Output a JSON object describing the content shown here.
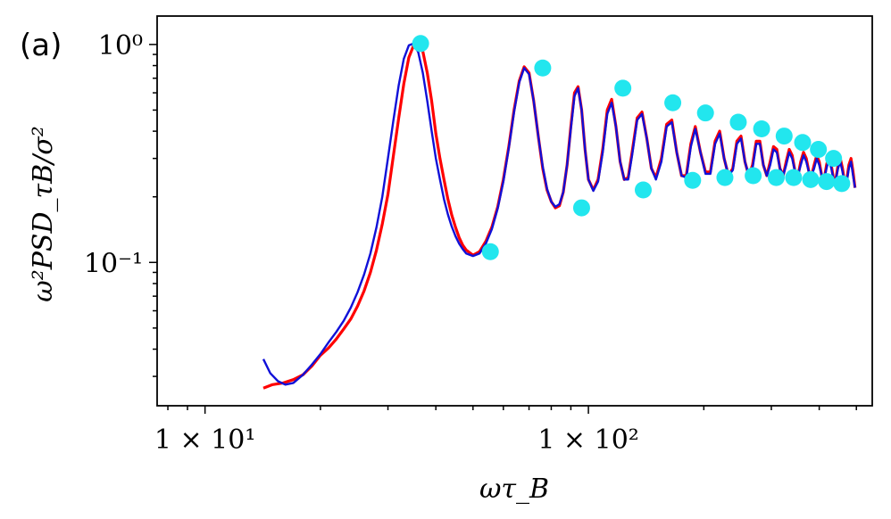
{
  "chart_data": {
    "type": "line",
    "panel_label": "(a)",
    "xlabel": "ωτ_B",
    "ylabel": "ω²PSD_τB/σ²",
    "x_scale": "log",
    "y_scale": "log",
    "xlim": [
      7.5,
      550
    ],
    "ylim": [
      0.022,
      1.35
    ],
    "x_ticks": [
      {
        "value": 10,
        "label": "1 × 10¹"
      },
      {
        "value": 100,
        "label": "1 × 10²"
      }
    ],
    "y_ticks": [
      {
        "value": 0.1,
        "label": "10⁻¹"
      },
      {
        "value": 1,
        "label": "10⁰"
      }
    ],
    "series": [
      {
        "color": "#ff0000",
        "style": "noisy data",
        "x": [
          14.2,
          15.0,
          16.0,
          17.0,
          18.0,
          19.0,
          20.0,
          21.0,
          22.0,
          23.0,
          24.0,
          25.0,
          26.0,
          27.0,
          28.0,
          29.0,
          30.0,
          31.0,
          32.0,
          33.0,
          34.0,
          35.0,
          36.0,
          37.0,
          38.0,
          39.0,
          40.0,
          41.0,
          42.0,
          43.0,
          44.0,
          45.0,
          46.0,
          47.0,
          48.0,
          50.0,
          52.0,
          54.0,
          56.0,
          58.0,
          60.0,
          62.0,
          64.0,
          66.0,
          68.0,
          70.0,
          72.0,
          74.0,
          76.0,
          78.0,
          80.0,
          82.0,
          84.0,
          86.0,
          88.0,
          90.0,
          92.0,
          94.0,
          96.0,
          98.0,
          100.0,
          103.0,
          106.0,
          109.0,
          112.0,
          115.0,
          118.0,
          121.0,
          124.0,
          127.0,
          130.0,
          134.0,
          138.0,
          142.0,
          146.0,
          150.0,
          155.0,
          160.0,
          165.0,
          170.0,
          175.0,
          180.0,
          185.0,
          190.0,
          196.0,
          202.0,
          208.0,
          214.0,
          220.0,
          226.0,
          232.0,
          238.0,
          244.0,
          250.0,
          256.0,
          262.0,
          268.0,
          274.0,
          280.0,
          286.0,
          292.0,
          298.0,
          304.0,
          310.0,
          316.0,
          322.0,
          328.0,
          334.0,
          340.0,
          346.0,
          352.0,
          358.0,
          364.0,
          370.0,
          376.0,
          382.0,
          388.0,
          394.0,
          400.0,
          406.0,
          412.0,
          418.0,
          424.0,
          430.0,
          436.0,
          442.0,
          448.0,
          454.0,
          460.0,
          466.0,
          472.0,
          478.0,
          484.0,
          490.0,
          496.0
        ],
        "y": [
          0.0265,
          0.0275,
          0.028,
          0.029,
          0.0305,
          0.0335,
          0.0375,
          0.0405,
          0.0445,
          0.0495,
          0.055,
          0.063,
          0.074,
          0.09,
          0.114,
          0.15,
          0.205,
          0.31,
          0.46,
          0.66,
          0.87,
          0.99,
          1.02,
          0.93,
          0.74,
          0.55,
          0.39,
          0.3,
          0.24,
          0.195,
          0.165,
          0.145,
          0.13,
          0.12,
          0.114,
          0.108,
          0.112,
          0.125,
          0.145,
          0.18,
          0.24,
          0.34,
          0.5,
          0.68,
          0.79,
          0.74,
          0.55,
          0.38,
          0.27,
          0.215,
          0.19,
          0.178,
          0.182,
          0.21,
          0.28,
          0.42,
          0.6,
          0.64,
          0.5,
          0.33,
          0.24,
          0.215,
          0.24,
          0.33,
          0.5,
          0.56,
          0.42,
          0.29,
          0.24,
          0.245,
          0.32,
          0.46,
          0.49,
          0.37,
          0.27,
          0.245,
          0.3,
          0.43,
          0.45,
          0.32,
          0.25,
          0.25,
          0.35,
          0.42,
          0.32,
          0.26,
          0.26,
          0.36,
          0.4,
          0.3,
          0.25,
          0.27,
          0.36,
          0.38,
          0.29,
          0.25,
          0.28,
          0.36,
          0.36,
          0.28,
          0.25,
          0.29,
          0.34,
          0.33,
          0.27,
          0.25,
          0.29,
          0.33,
          0.31,
          0.26,
          0.25,
          0.29,
          0.32,
          0.3,
          0.26,
          0.25,
          0.28,
          0.31,
          0.29,
          0.25,
          0.24,
          0.28,
          0.31,
          0.28,
          0.24,
          0.24,
          0.28,
          0.3,
          0.27,
          0.23,
          0.24,
          0.28,
          0.3,
          0.26,
          0.22
        ]
      },
      {
        "color": "#1010d8",
        "style": "smooth fit",
        "x": [
          14.2,
          14.8,
          15.5,
          16.2,
          17.0,
          18.0,
          19.0,
          20.0,
          21.0,
          22.0,
          23.0,
          24.0,
          25.0,
          26.0,
          27.0,
          28.0,
          29.0,
          30.0,
          31.0,
          32.0,
          33.0,
          34.0,
          35.0,
          36.0,
          37.0,
          38.0,
          39.0,
          40.0,
          41.0,
          42.0,
          43.0,
          44.0,
          45.0,
          46.0,
          47.0,
          48.0,
          50.0,
          52.0,
          54.0,
          56.0,
          58.0,
          60.0,
          62.0,
          64.0,
          66.0,
          68.0,
          70.0,
          72.0,
          74.0,
          76.0,
          78.0,
          80.0,
          82.0,
          84.0,
          86.0,
          88.0,
          90.0,
          92.0,
          94.0,
          96.0,
          98.0,
          100.0,
          103.0,
          106.0,
          109.0,
          112.0,
          115.0,
          118.0,
          121.0,
          124.0,
          127.0,
          130.0,
          134.0,
          138.0,
          142.0,
          146.0,
          150.0,
          155.0,
          160.0,
          165.0,
          170.0,
          175.0,
          180.0,
          185.0,
          190.0,
          196.0,
          202.0,
          208.0,
          214.0,
          220.0,
          226.0,
          232.0,
          238.0,
          244.0,
          250.0,
          256.0,
          262.0,
          268.0,
          274.0,
          280.0,
          286.0,
          292.0,
          298.0,
          304.0,
          310.0,
          316.0,
          322.0,
          328.0,
          334.0,
          340.0,
          346.0,
          352.0,
          358.0,
          364.0,
          370.0,
          376.0,
          382.0,
          388.0,
          394.0,
          400.0,
          406.0,
          412.0,
          418.0,
          424.0,
          430.0,
          436.0,
          442.0,
          448.0,
          454.0,
          460.0,
          466.0,
          472.0,
          478.0,
          484.0,
          490.0,
          496.0
        ],
        "y": [
          0.036,
          0.031,
          0.0285,
          0.0275,
          0.028,
          0.0305,
          0.034,
          0.038,
          0.043,
          0.048,
          0.054,
          0.062,
          0.073,
          0.088,
          0.11,
          0.145,
          0.2,
          0.3,
          0.45,
          0.65,
          0.86,
          0.99,
          1.01,
          0.92,
          0.74,
          0.55,
          0.4,
          0.3,
          0.24,
          0.195,
          0.166,
          0.146,
          0.132,
          0.122,
          0.115,
          0.11,
          0.107,
          0.11,
          0.122,
          0.142,
          0.177,
          0.235,
          0.335,
          0.49,
          0.67,
          0.78,
          0.73,
          0.55,
          0.38,
          0.275,
          0.218,
          0.19,
          0.18,
          0.185,
          0.21,
          0.28,
          0.41,
          0.58,
          0.63,
          0.5,
          0.33,
          0.24,
          0.213,
          0.235,
          0.32,
          0.48,
          0.54,
          0.42,
          0.29,
          0.24,
          0.24,
          0.31,
          0.45,
          0.48,
          0.37,
          0.27,
          0.24,
          0.29,
          0.42,
          0.44,
          0.32,
          0.25,
          0.245,
          0.34,
          0.41,
          0.32,
          0.255,
          0.255,
          0.35,
          0.39,
          0.3,
          0.25,
          0.265,
          0.35,
          0.37,
          0.29,
          0.25,
          0.27,
          0.35,
          0.35,
          0.28,
          0.25,
          0.28,
          0.33,
          0.32,
          0.27,
          0.25,
          0.28,
          0.32,
          0.3,
          0.26,
          0.25,
          0.28,
          0.31,
          0.29,
          0.26,
          0.25,
          0.27,
          0.3,
          0.28,
          0.25,
          0.24,
          0.27,
          0.3,
          0.27,
          0.24,
          0.24,
          0.27,
          0.29,
          0.26,
          0.23,
          0.235,
          0.27,
          0.29,
          0.25,
          0.22
        ]
      },
      {
        "color": "#22e6ee",
        "style": "markers",
        "x": [
          36.5,
          55.5,
          76.0,
          96.0,
          123.0,
          139.0,
          166.0,
          187.0,
          202.0,
          227.0,
          246.0,
          269.0,
          283.0,
          309.0,
          324.0,
          343.0,
          362.0,
          380.0,
          398.0,
          418.0,
          436.0,
          458.0
        ],
        "y": [
          1.01,
          0.112,
          0.78,
          0.178,
          0.63,
          0.215,
          0.54,
          0.238,
          0.485,
          0.245,
          0.44,
          0.25,
          0.41,
          0.245,
          0.38,
          0.245,
          0.355,
          0.24,
          0.33,
          0.235,
          0.3,
          0.23
        ]
      }
    ]
  }
}
